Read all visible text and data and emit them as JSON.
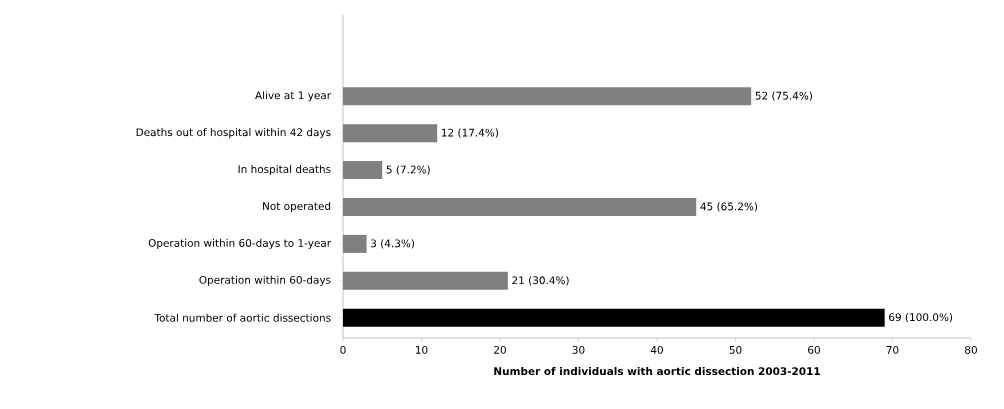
{
  "chart_data": {
    "type": "bar",
    "orientation": "horizontal",
    "xlabel": "Number of individuals  with aortic dissection 2003-2011",
    "categories": [
      "Alive at 1 year",
      "Deaths out of hospital within 42 days",
      "In hospital  deaths",
      "Not operated",
      "Operation within 60-days to 1-year",
      "Operation within 60-days",
      "Total number of aortic dissections"
    ],
    "values": [
      52,
      12,
      5,
      45,
      3,
      21,
      69
    ],
    "colors": [
      "#808080",
      "#808080",
      "#808080",
      "#808080",
      "#808080",
      "#808080",
      "#000000"
    ],
    "value_labels": [
      "52 (75.4%)",
      "12 (17.4%)",
      "5 (7.2%)",
      "45 (65.2%)",
      "3 (4.3%)",
      "21 (30.4%)",
      "69 (100.0%)"
    ],
    "xlim": [
      0,
      80
    ],
    "xticks": [
      0,
      10,
      20,
      30,
      40,
      50,
      60,
      70,
      80
    ],
    "grid": false
  }
}
